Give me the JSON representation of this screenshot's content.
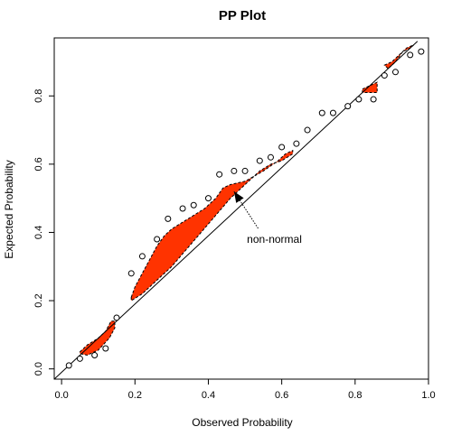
{
  "chart_data": {
    "type": "scatter",
    "title": "PP Plot",
    "xlabel": "Observed Probability",
    "ylabel": "Expected Probability",
    "xlim": [
      -0.02,
      1.0
    ],
    "ylim": [
      -0.03,
      0.97
    ],
    "xticks": [
      0.0,
      0.2,
      0.4,
      0.6,
      0.8,
      1.0
    ],
    "xtick_labels": [
      "0.0",
      "0.2",
      "0.4",
      "0.6",
      "0.8",
      "1.0"
    ],
    "yticks": [
      0.0,
      0.2,
      0.4,
      0.6,
      0.8
    ],
    "ytick_labels": [
      "0.0",
      "0.2",
      "0.4",
      "0.6",
      "0.8"
    ],
    "grid": false,
    "legend": "none",
    "reference_line": {
      "from": [
        -0.02,
        -0.03
      ],
      "to": [
        0.97,
        0.96
      ]
    },
    "points": [
      {
        "x": 0.02,
        "y": 0.01
      },
      {
        "x": 0.05,
        "y": 0.03
      },
      {
        "x": 0.09,
        "y": 0.04
      },
      {
        "x": 0.12,
        "y": 0.06
      },
      {
        "x": 0.15,
        "y": 0.15
      },
      {
        "x": 0.19,
        "y": 0.28
      },
      {
        "x": 0.22,
        "y": 0.33
      },
      {
        "x": 0.26,
        "y": 0.38
      },
      {
        "x": 0.29,
        "y": 0.44
      },
      {
        "x": 0.33,
        "y": 0.47
      },
      {
        "x": 0.36,
        "y": 0.48
      },
      {
        "x": 0.4,
        "y": 0.5
      },
      {
        "x": 0.43,
        "y": 0.57
      },
      {
        "x": 0.47,
        "y": 0.58
      },
      {
        "x": 0.5,
        "y": 0.58
      },
      {
        "x": 0.54,
        "y": 0.61
      },
      {
        "x": 0.57,
        "y": 0.62
      },
      {
        "x": 0.6,
        "y": 0.65
      },
      {
        "x": 0.64,
        "y": 0.66
      },
      {
        "x": 0.67,
        "y": 0.7
      },
      {
        "x": 0.71,
        "y": 0.75
      },
      {
        "x": 0.74,
        "y": 0.75
      },
      {
        "x": 0.78,
        "y": 0.77
      },
      {
        "x": 0.81,
        "y": 0.79
      },
      {
        "x": 0.85,
        "y": 0.79
      },
      {
        "x": 0.88,
        "y": 0.86
      },
      {
        "x": 0.91,
        "y": 0.87
      },
      {
        "x": 0.95,
        "y": 0.92
      },
      {
        "x": 0.98,
        "y": 0.93
      }
    ],
    "shaded_regions": [
      {
        "fill": "#ff3300",
        "outline": [
          [
            0.05,
            0.05
          ],
          [
            0.07,
            0.07
          ],
          [
            0.1,
            0.09
          ],
          [
            0.12,
            0.11
          ],
          [
            0.135,
            0.14
          ],
          [
            0.145,
            0.14
          ],
          [
            0.145,
            0.12
          ],
          [
            0.13,
            0.09
          ],
          [
            0.1,
            0.055
          ],
          [
            0.07,
            0.04
          ],
          [
            0.05,
            0.045
          ]
        ]
      },
      {
        "fill": "#ff3300",
        "outline": [
          [
            0.19,
            0.21
          ],
          [
            0.2,
            0.24
          ],
          [
            0.22,
            0.28
          ],
          [
            0.24,
            0.32
          ],
          [
            0.26,
            0.36
          ],
          [
            0.28,
            0.39
          ],
          [
            0.3,
            0.41
          ],
          [
            0.33,
            0.43
          ],
          [
            0.36,
            0.45
          ],
          [
            0.39,
            0.47
          ],
          [
            0.42,
            0.5
          ],
          [
            0.44,
            0.53
          ],
          [
            0.46,
            0.54
          ],
          [
            0.5,
            0.55
          ],
          [
            0.55,
            0.58
          ],
          [
            0.59,
            0.61
          ],
          [
            0.61,
            0.63
          ],
          [
            0.63,
            0.64
          ],
          [
            0.63,
            0.63
          ],
          [
            0.6,
            0.61
          ],
          [
            0.57,
            0.6
          ],
          [
            0.54,
            0.58
          ],
          [
            0.5,
            0.54
          ],
          [
            0.46,
            0.5
          ],
          [
            0.42,
            0.45
          ],
          [
            0.38,
            0.4
          ],
          [
            0.34,
            0.35
          ],
          [
            0.3,
            0.3
          ],
          [
            0.26,
            0.26
          ],
          [
            0.22,
            0.22
          ],
          [
            0.19,
            0.2
          ]
        ]
      },
      {
        "fill": "#ff3300",
        "outline": [
          [
            0.82,
            0.82
          ],
          [
            0.84,
            0.83
          ],
          [
            0.86,
            0.84
          ],
          [
            0.86,
            0.81
          ],
          [
            0.85,
            0.81
          ],
          [
            0.83,
            0.81
          ],
          [
            0.82,
            0.81
          ]
        ]
      },
      {
        "fill": "#ff3300",
        "outline": [
          [
            0.88,
            0.89
          ],
          [
            0.9,
            0.9
          ],
          [
            0.92,
            0.92
          ],
          [
            0.94,
            0.94
          ],
          [
            0.96,
            0.95
          ],
          [
            0.95,
            0.94
          ],
          [
            0.93,
            0.93
          ],
          [
            0.91,
            0.9
          ],
          [
            0.89,
            0.88
          ]
        ]
      }
    ],
    "annotations": [
      {
        "text": "non-normal",
        "x": 0.58,
        "y": 0.38,
        "arrow_to": [
          0.47,
          0.52
        ]
      }
    ]
  }
}
